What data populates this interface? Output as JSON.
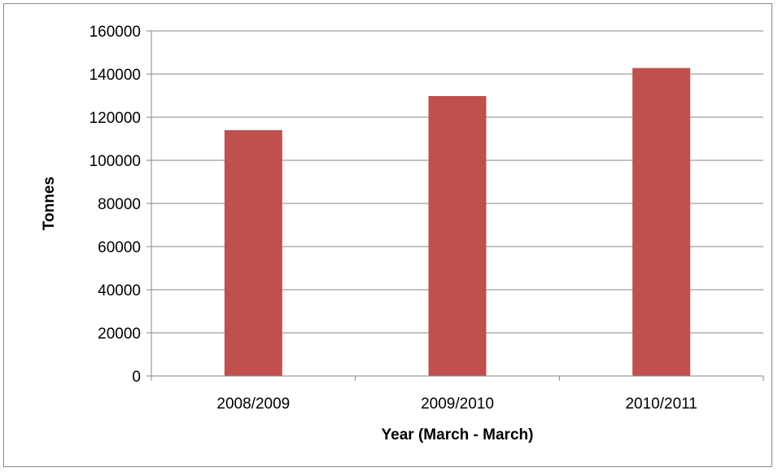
{
  "chart_data": {
    "type": "bar",
    "title": "",
    "xlabel": "Year (March - March)",
    "ylabel": "Tonnes",
    "categories": [
      "2008/2009",
      "2009/2010",
      "2010/2011"
    ],
    "series": [
      {
        "values": [
          114000,
          129800,
          142800
        ],
        "color": "#c0504d"
      }
    ],
    "ylim": [
      0,
      160000
    ],
    "yticks": [
      0,
      20000,
      40000,
      60000,
      80000,
      100000,
      120000,
      140000,
      160000
    ],
    "grid": true,
    "legend": "none",
    "colors": {
      "bar": "#c0504d",
      "grid": "#868686",
      "axis": "#868686"
    }
  }
}
